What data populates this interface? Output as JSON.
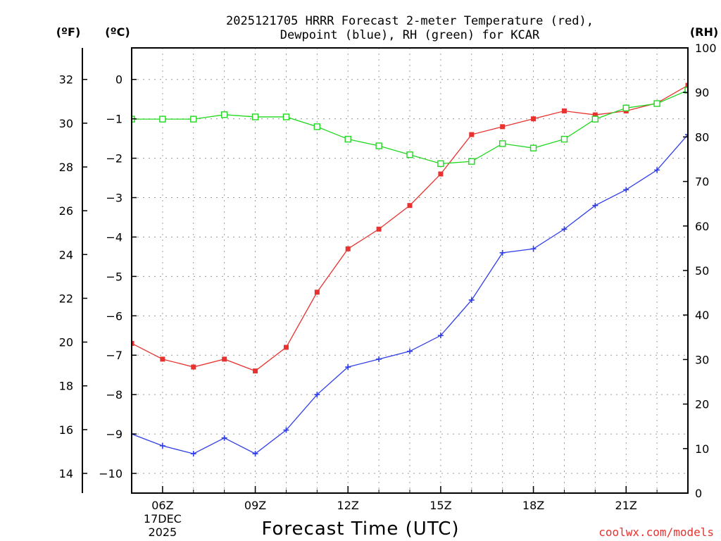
{
  "chart_data": {
    "type": "line",
    "title_line1": "2025121705 HRRR Forecast 2-meter Temperature (red),",
    "title_line2": "Dewpoint (blue), RH (green) for KCAR",
    "xlabel": "Forecast Time (UTC)",
    "credit": "coolwx.com/models",
    "unit_f": "(ºF)",
    "unit_c": "(ºC)",
    "unit_rh": "(RH)",
    "x_hours": [
      5,
      6,
      7,
      8,
      9,
      10,
      11,
      12,
      13,
      14,
      15,
      16,
      17,
      18,
      19,
      20,
      21,
      22,
      23
    ],
    "x_ticks": [
      {
        "hour": 6,
        "label": "06Z",
        "sub1": "17DEC",
        "sub2": "2025"
      },
      {
        "hour": 9,
        "label": "09Z"
      },
      {
        "hour": 12,
        "label": "12Z"
      },
      {
        "hour": 15,
        "label": "15Z"
      },
      {
        "hour": 18,
        "label": "18Z"
      },
      {
        "hour": 21,
        "label": "21Z"
      }
    ],
    "xlim": [
      5,
      23
    ],
    "celsius_axis": {
      "ylim": [
        -10.5,
        0.8
      ],
      "ticks": [
        "0",
        "−1",
        "−2",
        "−3",
        "−4",
        "−5",
        "−6",
        "−7",
        "−8",
        "−9",
        "−10"
      ],
      "tick_values": [
        0,
        -1,
        -2,
        -3,
        -4,
        -5,
        -6,
        -7,
        -8,
        -9,
        -10
      ]
    },
    "fahrenheit_axis": {
      "ticks": [
        "32",
        "30",
        "28",
        "26",
        "24",
        "22",
        "20",
        "18",
        "16",
        "14"
      ],
      "tick_values": [
        32,
        30,
        28,
        26,
        24,
        22,
        20,
        18,
        16,
        14
      ]
    },
    "rh_axis": {
      "ylim": [
        0,
        100
      ],
      "ticks": [
        "0",
        "10",
        "20",
        "30",
        "40",
        "50",
        "60",
        "70",
        "80",
        "90",
        "100"
      ],
      "tick_values": [
        0,
        10,
        20,
        30,
        40,
        50,
        60,
        70,
        80,
        90,
        100
      ]
    },
    "series": [
      {
        "name": "Temperature",
        "color": "#e8322f",
        "marker": "filled-square",
        "axis": "celsius",
        "values": [
          -6.7,
          -7.1,
          -7.3,
          -7.1,
          -7.4,
          -6.8,
          -5.4,
          -4.3,
          -3.8,
          -3.2,
          -2.4,
          -1.4,
          -1.2,
          -1.0,
          -0.8,
          -0.9,
          -0.8,
          -0.6,
          -0.15
        ]
      },
      {
        "name": "Dewpoint",
        "color": "#2f3de8",
        "marker": "plus",
        "axis": "celsius",
        "values": [
          -9.0,
          -9.3,
          -9.5,
          -9.1,
          -9.5,
          -8.9,
          -8.0,
          -7.3,
          -7.1,
          -6.9,
          -6.5,
          -5.6,
          -4.4,
          -4.3,
          -3.8,
          -3.2,
          -2.8,
          -2.3,
          -1.4
        ]
      },
      {
        "name": "RH",
        "color": "#1fd81f",
        "marker": "open-square",
        "axis": "rh",
        "values": [
          84,
          84,
          84,
          85,
          84.5,
          84.5,
          82.3,
          79.5,
          78,
          76,
          74,
          74.5,
          78.5,
          77.5,
          79.5,
          84,
          86.5,
          87.5,
          90.5
        ]
      }
    ]
  }
}
